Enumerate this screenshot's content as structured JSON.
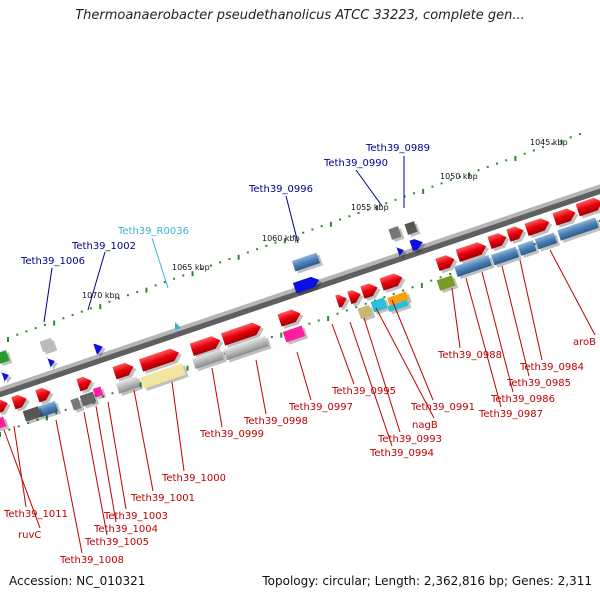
{
  "title": "Thermoanaerobacter pseudethanolicus ATCC 33223, complete gen...",
  "accession": "Accession: NC_010321",
  "summary": "Topology: circular; Length: 2,362,816 bp; Genes: 2,311",
  "colors": {
    "forward_gene": "#e8000b",
    "reverse_gene": "#4a7fb5",
    "rna_gene": "#0b10e0",
    "pseudo_gene": "#b8b8b8",
    "backbone": "#777777",
    "tick": "#2a8a2a",
    "label_top": "#00008b",
    "label_rna": "#39b3d8",
    "label_bottom": "#c00000"
  },
  "kbp_markers": [
    "1045 kbp",
    "1050 kbp",
    "1055 kbp",
    "1060 kbp",
    "1065 kbp",
    "1070 kbp"
  ],
  "top_labels": [
    {
      "text": "Teth39_0989",
      "kind": "gene"
    },
    {
      "text": "Teth39_0990",
      "kind": "gene"
    },
    {
      "text": "Teth39_0996",
      "kind": "gene"
    },
    {
      "text": "Teth39_R0036",
      "kind": "rna"
    },
    {
      "text": "Teth39_1002",
      "kind": "gene"
    },
    {
      "text": "Teth39_1006",
      "kind": "gene"
    }
  ],
  "bottom_labels": [
    "aroB",
    "Teth39_0984",
    "Teth39_0985",
    "Teth39_0986",
    "Teth39_0987",
    "Teth39_0988",
    "Teth39_0991",
    "nagB",
    "Teth39_0993",
    "Teth39_0994",
    "Teth39_0995",
    "Teth39_0997",
    "Teth39_0998",
    "Teth39_0999",
    "Teth39_1000",
    "Teth39_1001",
    "Teth39_1003",
    "Teth39_1004",
    "Teth39_1005",
    "Teth39_1008",
    "Teth39_1011",
    "ruvC"
  ]
}
